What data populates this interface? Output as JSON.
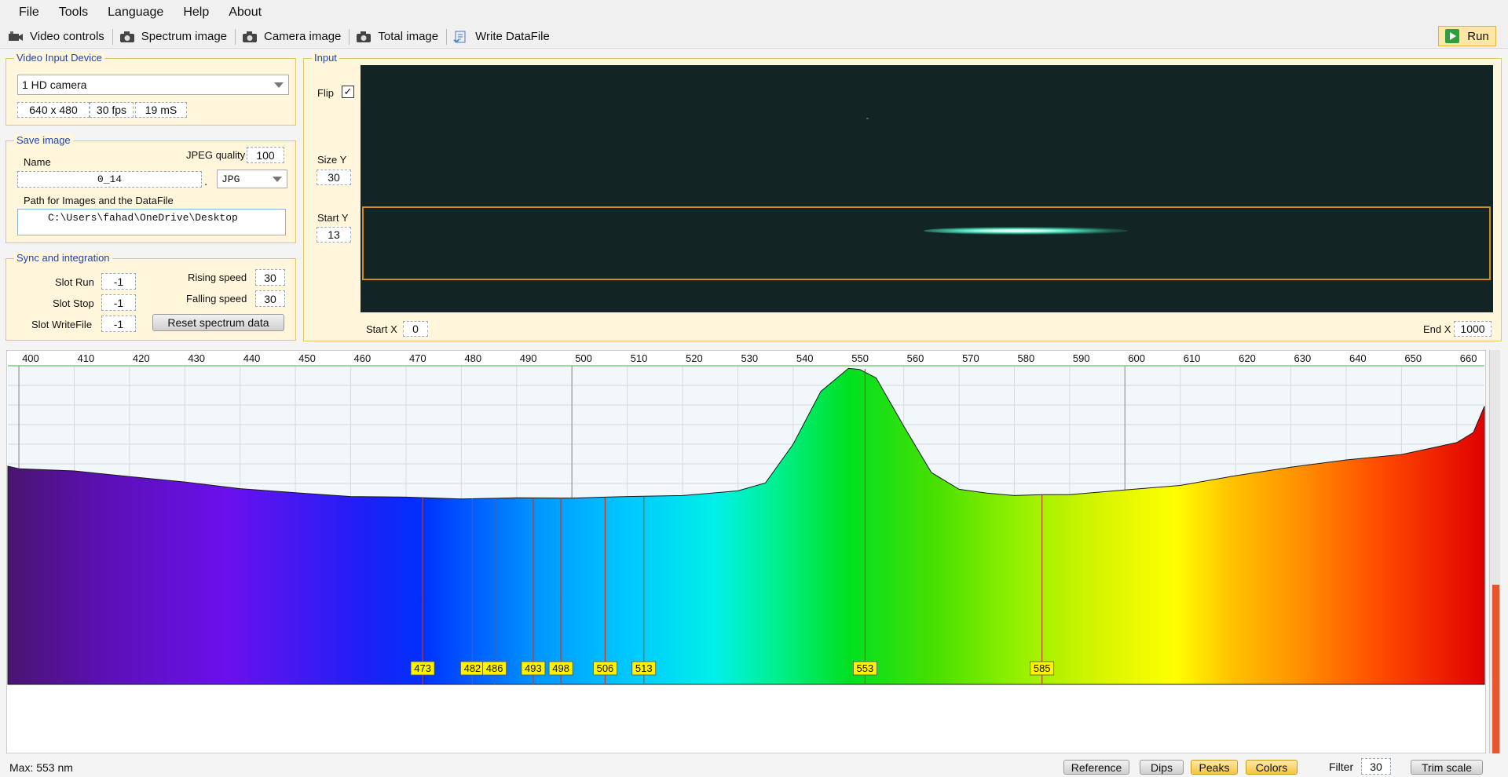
{
  "menu": [
    "File",
    "Tools",
    "Language",
    "Help",
    "About"
  ],
  "toolbar": {
    "items": [
      {
        "label": "Video controls",
        "icon": "video-controls-icon"
      },
      {
        "label": "Spectrum image",
        "icon": "camera-icon"
      },
      {
        "label": "Camera image",
        "icon": "camera-icon"
      },
      {
        "label": "Total image",
        "icon": "camera-icon"
      },
      {
        "label": "Write DataFile",
        "icon": "write-datafile-icon"
      }
    ],
    "run_label": "Run"
  },
  "video_input": {
    "legend": "Video Input Device",
    "device": "1 HD camera",
    "resolution": "640 x 480",
    "fps": "30 fps",
    "exposure": "19 mS"
  },
  "save_image": {
    "legend": "Save image",
    "name_label": "Name",
    "name_value": "0_14",
    "dot": ".",
    "jpeg_quality_label": "JPEG quality",
    "jpeg_quality_value": "100",
    "format": "JPG",
    "path_label": "Path for Images and the DataFile",
    "path_value": "C:\\Users\\fahad\\OneDrive\\Desktop"
  },
  "sync": {
    "legend": "Sync and integration",
    "slot_run_label": "Slot Run",
    "slot_run_value": "-1",
    "slot_stop_label": "Slot Stop",
    "slot_stop_value": "-1",
    "slot_writefile_label": "Slot WriteFile",
    "slot_writefile_value": "-1",
    "rising_label": "Rising speed",
    "rising_value": "30",
    "falling_label": "Falling speed",
    "falling_value": "30",
    "reset_label": "Reset spectrum data"
  },
  "input": {
    "legend": "Input",
    "flip_label": "Flip",
    "flip_checked": true,
    "check_mark": "✓",
    "size_y_label": "Size Y",
    "size_y_value": "30",
    "start_y_label": "Start Y",
    "start_y_value": "13",
    "start_x_label": "Start X",
    "start_x_value": "0",
    "end_x_label": "End X",
    "end_x_value": "1000"
  },
  "chart_data": {
    "type": "area",
    "title": "",
    "xlabel": "",
    "ylabel": "",
    "xlim": [
      398,
      665
    ],
    "ylim": [
      0,
      1
    ],
    "x_ticks": [
      400,
      410,
      420,
      430,
      440,
      450,
      460,
      470,
      480,
      490,
      500,
      510,
      520,
      530,
      540,
      550,
      560,
      570,
      580,
      590,
      600,
      610,
      620,
      630,
      640,
      650,
      660
    ],
    "tick_labels": [
      "400",
      "410",
      "420",
      "430",
      "440",
      "450",
      "460",
      "470",
      "480",
      "490",
      "500",
      "510",
      "520",
      "530",
      "540",
      "550",
      "560",
      "570",
      "580",
      "590",
      "600",
      "610",
      "620",
      "630",
      "640",
      "650",
      "660"
    ],
    "grid": true,
    "fill": "wavelength colors",
    "x": [
      398,
      400,
      410,
      420,
      430,
      440,
      450,
      460,
      470,
      480,
      490,
      500,
      510,
      520,
      530,
      535,
      540,
      545,
      550,
      552,
      555,
      560,
      565,
      570,
      575,
      580,
      585,
      590,
      600,
      610,
      620,
      630,
      640,
      650,
      660,
      663,
      665
    ],
    "y": [
      0.69,
      0.685,
      0.675,
      0.66,
      0.64,
      0.622,
      0.606,
      0.597,
      0.592,
      0.589,
      0.59,
      0.592,
      0.594,
      0.6,
      0.612,
      0.64,
      0.76,
      0.93,
      1.0,
      1.0,
      0.97,
      0.82,
      0.67,
      0.62,
      0.605,
      0.6,
      0.6,
      0.603,
      0.615,
      0.632,
      0.66,
      0.69,
      0.71,
      0.73,
      0.765,
      0.8,
      0.88
    ],
    "peaks": [
      {
        "nm": 473,
        "label": "473",
        "y": 0.592
      },
      {
        "nm": 482,
        "label": "482",
        "y": 0.589
      },
      {
        "nm": 486,
        "label": "486",
        "y": 0.589
      },
      {
        "nm": 493,
        "label": "493",
        "y": 0.59
      },
      {
        "nm": 498,
        "label": "498",
        "y": 0.591
      },
      {
        "nm": 506,
        "label": "506",
        "y": 0.593
      },
      {
        "nm": 513,
        "label": "513",
        "y": 0.595
      },
      {
        "nm": 553,
        "label": "553",
        "y": 0.999
      },
      {
        "nm": 585,
        "label": "585",
        "y": 0.6
      }
    ]
  },
  "status": {
    "max_text": "Max: 553 nm",
    "reference_label": "Reference",
    "dips_label": "Dips",
    "peaks_label": "Peaks",
    "colors_label": "Colors",
    "filter_label": "Filter",
    "filter_value": "30",
    "trim_label": "Trim scale"
  },
  "colors": {
    "accent": "#e9c56a",
    "peak_line": "#c0392b",
    "peak_label_bg": "#fff200",
    "roi": "#d68a1e"
  }
}
